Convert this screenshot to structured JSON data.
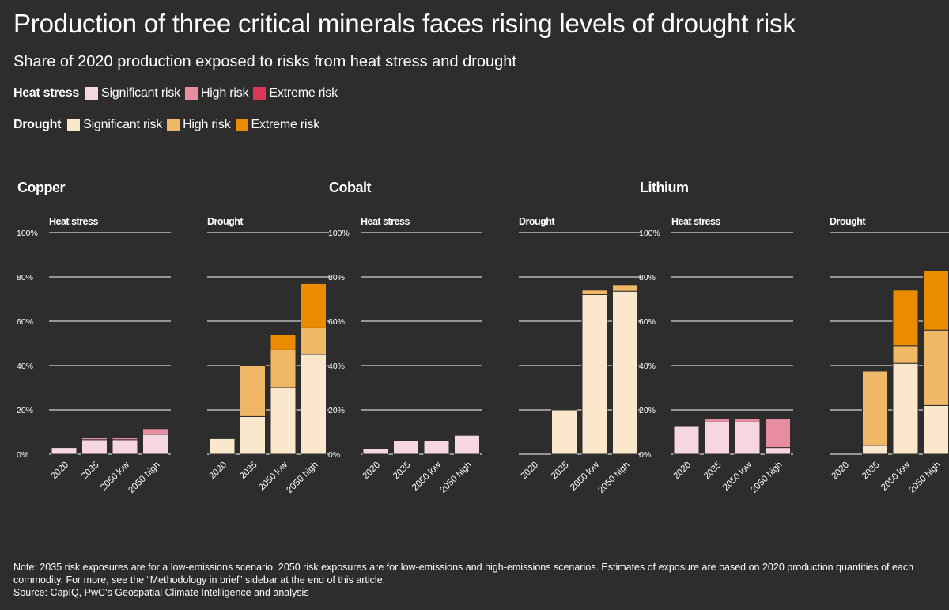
{
  "title": "Production of three critical minerals faces rising levels of drought risk",
  "subtitle": "Share of 2020 production exposed to risks from heat stress and drought",
  "legend": {
    "heat": {
      "title": "Heat stress",
      "items": [
        {
          "label": "Significant risk",
          "color": "#f7d7df"
        },
        {
          "label": "High risk",
          "color": "#e88d9f"
        },
        {
          "label": "Extreme risk",
          "color": "#db3656"
        }
      ]
    },
    "drought": {
      "title": "Drought",
      "items": [
        {
          "label": "Significant risk",
          "color": "#fbe8cc"
        },
        {
          "label": "High risk",
          "color": "#f0b866"
        },
        {
          "label": "Extreme risk",
          "color": "#eb8c00"
        }
      ]
    }
  },
  "chart_data": [
    {
      "type": "bar",
      "stacked": true,
      "commodity": "Copper",
      "panel": "Heat stress",
      "categories": [
        "2020",
        "2035",
        "2050 low",
        "2050 high"
      ],
      "series": [
        {
          "name": "Significant risk",
          "color": "#f7d7df",
          "values": [
            3,
            6.5,
            6.5,
            9
          ]
        },
        {
          "name": "High risk",
          "color": "#e88d9f",
          "values": [
            0,
            1,
            1,
            2.5
          ]
        },
        {
          "name": "Extreme risk",
          "color": "#db3656",
          "values": [
            0,
            0,
            0,
            0
          ]
        }
      ],
      "ylim": [
        0,
        100
      ],
      "yticks": [
        "100%",
        "80%",
        "60%",
        "40%",
        "20%",
        "0%"
      ]
    },
    {
      "type": "bar",
      "stacked": true,
      "commodity": "Copper",
      "panel": "Drought",
      "categories": [
        "2020",
        "2035",
        "2050 low",
        "2050 high"
      ],
      "series": [
        {
          "name": "Significant risk",
          "color": "#fbe8cc",
          "values": [
            7,
            17,
            30,
            45
          ]
        },
        {
          "name": "High risk",
          "color": "#f0b866",
          "values": [
            0,
            23,
            17,
            12
          ]
        },
        {
          "name": "Extreme risk",
          "color": "#eb8c00",
          "values": [
            0,
            0,
            7,
            20
          ]
        }
      ],
      "ylim": [
        0,
        100
      ]
    },
    {
      "type": "bar",
      "stacked": true,
      "commodity": "Cobalt",
      "panel": "Heat stress",
      "categories": [
        "2020",
        "2035",
        "2050 low",
        "2050 high"
      ],
      "series": [
        {
          "name": "Significant risk",
          "color": "#f7d7df",
          "values": [
            2.5,
            6,
            6,
            8.5
          ]
        },
        {
          "name": "High risk",
          "color": "#e88d9f",
          "values": [
            0,
            0,
            0,
            0
          ]
        },
        {
          "name": "Extreme risk",
          "color": "#db3656",
          "values": [
            0,
            0,
            0,
            0
          ]
        }
      ],
      "ylim": [
        0,
        100
      ],
      "yticks": [
        "100%",
        "80%",
        "60%",
        "40%",
        "20%",
        "0%"
      ]
    },
    {
      "type": "bar",
      "stacked": true,
      "commodity": "Cobalt",
      "panel": "Drought",
      "categories": [
        "2020",
        "2035",
        "2050 low",
        "2050 high"
      ],
      "series": [
        {
          "name": "Significant risk",
          "color": "#fbe8cc",
          "values": [
            0,
            20,
            72,
            73.5
          ]
        },
        {
          "name": "High risk",
          "color": "#f0b866",
          "values": [
            0,
            0,
            2,
            3
          ]
        },
        {
          "name": "Extreme risk",
          "color": "#eb8c00",
          "values": [
            0,
            0,
            0,
            0
          ]
        }
      ],
      "ylim": [
        0,
        100
      ]
    },
    {
      "type": "bar",
      "stacked": true,
      "commodity": "Lithium",
      "panel": "Heat stress",
      "categories": [
        "2020",
        "2035",
        "2050 low",
        "2050 high"
      ],
      "series": [
        {
          "name": "Significant risk",
          "color": "#f7d7df",
          "values": [
            12.5,
            14.5,
            14.5,
            3
          ]
        },
        {
          "name": "High risk",
          "color": "#e88d9f",
          "values": [
            0,
            1.5,
            1.5,
            13
          ]
        },
        {
          "name": "Extreme risk",
          "color": "#db3656",
          "values": [
            0,
            0,
            0,
            0
          ]
        }
      ],
      "ylim": [
        0,
        100
      ],
      "yticks": [
        "100%",
        "80%",
        "60%",
        "40%",
        "20%",
        "0%"
      ]
    },
    {
      "type": "bar",
      "stacked": true,
      "commodity": "Lithium",
      "panel": "Drought",
      "categories": [
        "2020",
        "2035",
        "2050 low",
        "2050 high"
      ],
      "series": [
        {
          "name": "Significant risk",
          "color": "#fbe8cc",
          "values": [
            0,
            4,
            41,
            22
          ]
        },
        {
          "name": "High risk",
          "color": "#f0b866",
          "values": [
            0,
            33.5,
            8,
            34
          ]
        },
        {
          "name": "Extreme risk",
          "color": "#eb8c00",
          "values": [
            0,
            0,
            25,
            27
          ]
        }
      ],
      "ylim": [
        0,
        100
      ]
    }
  ],
  "notes": {
    "note": "Note: 2035 risk exposures are for a low-emissions scenario. 2050 risk exposures are for low-emissions and high-emissions scenarios. Estimates of exposure are based on 2020 production quantities of each commodity. For more, see the “Methodology in brief” sidebar at the end of this article.",
    "source": "Source: CapIQ, PwC’s Geospatial Climate Intelligence and analysis"
  }
}
